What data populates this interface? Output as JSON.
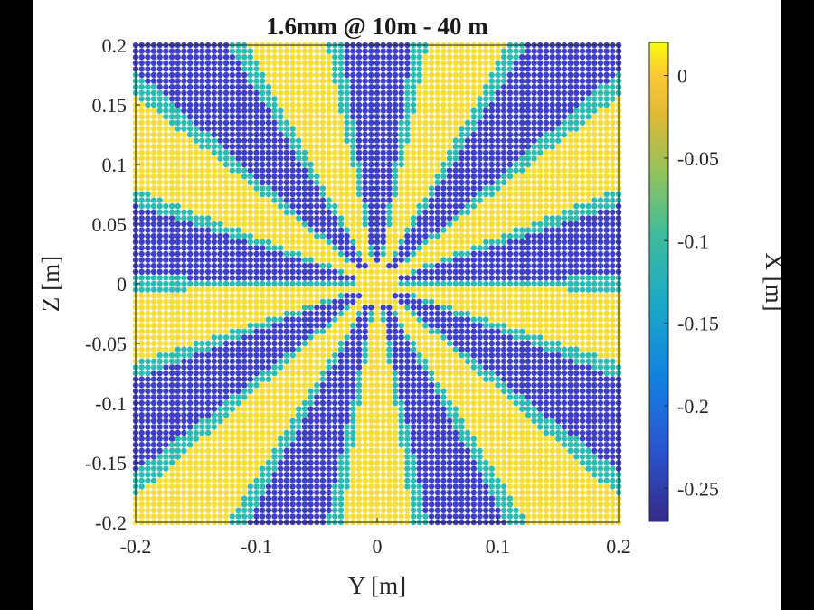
{
  "chart_data": {
    "type": "scatter",
    "title": "1.6mm @ 10m - 40 m",
    "xlabel": "Y [m]",
    "ylabel": "Z [m]",
    "colorbar_label": "X [m]",
    "xlim": [
      -0.2,
      0.2
    ],
    "ylim": [
      -0.2,
      0.2
    ],
    "clim": [
      -0.27,
      0.02
    ],
    "xticks": [
      "-0.2",
      "-0.1",
      "0",
      "0.1",
      "0.2"
    ],
    "xtick_values": [
      -0.2,
      -0.1,
      0,
      0.1,
      0.2
    ],
    "yticks": [
      "0.2",
      "0.15",
      "0.1",
      "0.05",
      "0",
      "-0.05",
      "-0.1",
      "-0.15",
      "-0.2"
    ],
    "ytick_values": [
      0.2,
      0.15,
      0.1,
      0.05,
      0,
      -0.05,
      -0.1,
      -0.15,
      -0.2
    ],
    "colorbar_ticks": [
      "0",
      "-0.05",
      "-0.1",
      "-0.15",
      "-0.2",
      "-0.25"
    ],
    "colorbar_tick_values": [
      0,
      -0.05,
      -0.1,
      -0.15,
      -0.2,
      -0.25
    ],
    "colormap": "parula",
    "pattern": {
      "description": "radial wedge (Siemens-star) pattern of points",
      "sectors": 18,
      "high_value": 0.01,
      "low_value": -0.26,
      "center_disk_radius": 0.018,
      "grid_step": 0.005
    },
    "grid": false,
    "colors": {
      "yellow": "#f5dd3a",
      "blue": "#3e3fc8",
      "teal": "#2bbbb0"
    }
  }
}
